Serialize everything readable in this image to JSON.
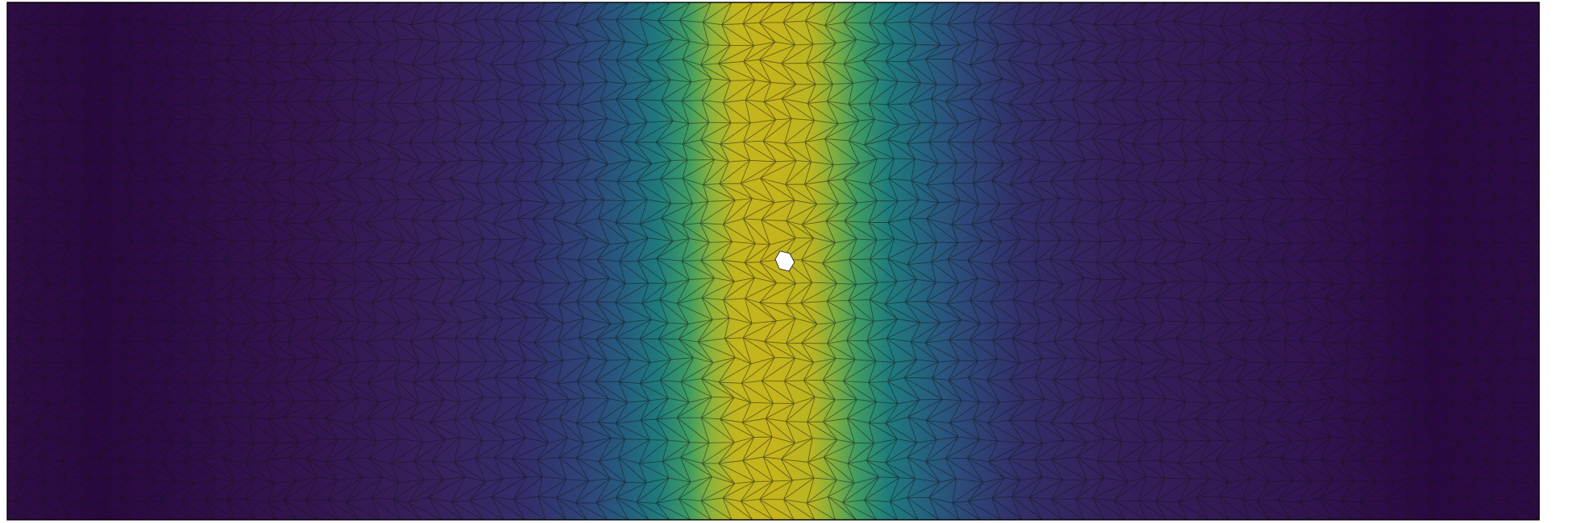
{
  "figure": {
    "colormap": "viridis",
    "colorscale_stops": [
      "#2b0a3d",
      "#342060",
      "#2f3f7a",
      "#23697e",
      "#1f8a78",
      "#57a84f",
      "#a9b62c",
      "#c9b51a"
    ],
    "background": "#ffffff",
    "mesh_edge_color": "#1a1a1a",
    "hole_color": "#ffffff"
  }
}
